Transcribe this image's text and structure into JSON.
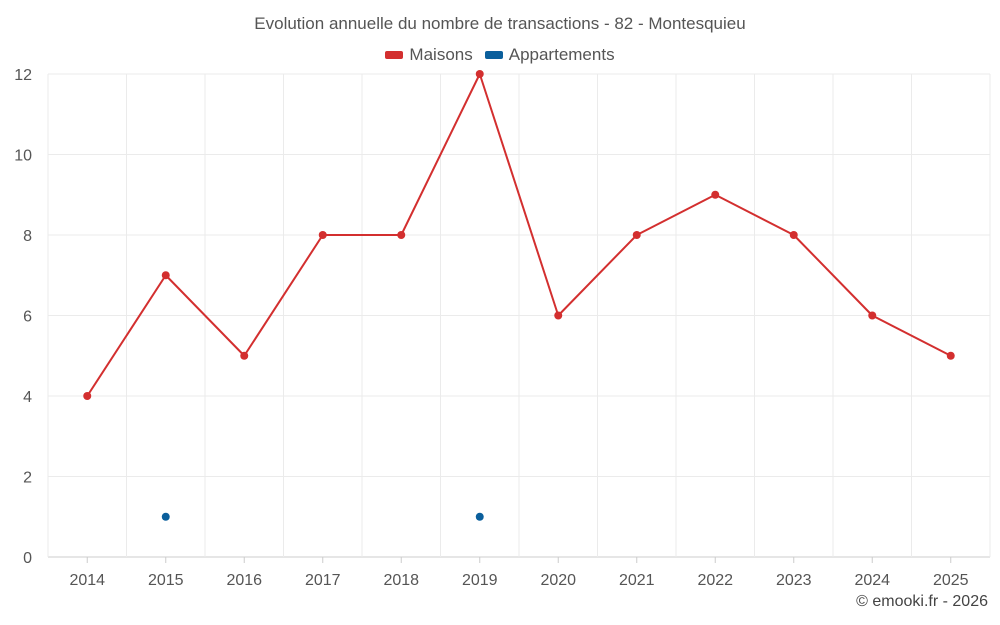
{
  "chart_data": {
    "type": "line",
    "title": "Evolution annuelle du nombre de transactions - 82 - Montesquieu",
    "categories": [
      "2014",
      "2015",
      "2016",
      "2017",
      "2018",
      "2019",
      "2020",
      "2021",
      "2022",
      "2023",
      "2024",
      "2025"
    ],
    "series": [
      {
        "name": "Maisons",
        "color": "#d32f2f",
        "values": [
          4,
          7,
          5,
          8,
          8,
          12,
          6,
          8,
          9,
          8,
          6,
          5
        ]
      },
      {
        "name": "Appartements",
        "color": "#0b5f9c",
        "values": [
          null,
          1,
          null,
          null,
          null,
          1,
          null,
          null,
          null,
          null,
          null,
          null
        ]
      }
    ],
    "xlabel": "",
    "ylabel": "",
    "ylim": [
      0,
      12
    ],
    "yticks": [
      "0",
      "2",
      "4",
      "6",
      "8",
      "10",
      "12"
    ],
    "grid": true,
    "legend_position": "top-center"
  },
  "footer": {
    "credit": "© emooki.fr - 2026"
  }
}
